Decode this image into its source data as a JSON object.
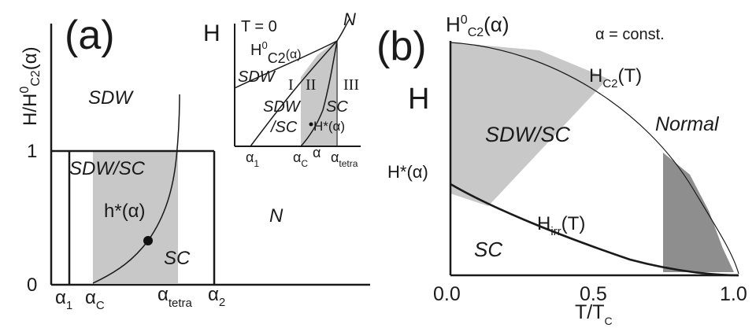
{
  "panel_a": {
    "label": "(a)",
    "ylabel_main": "H/H",
    "ylabel_sup": "0",
    "ylabel_sub": "C2",
    "ylabel_tail": "(α)",
    "tick_1": "1",
    "tick_0": "0",
    "region_sdw": "SDW",
    "region_sdwsc": "SDW/SC",
    "region_n": "N",
    "region_sc": "SC",
    "hstar_label": "h*(α)",
    "x_alpha1": "α",
    "x_alpha1_sub": "1",
    "x_alphac": "α",
    "x_alphac_sub": "C",
    "x_alphatetra": "α",
    "x_alphatetra_sub": "tetra",
    "x_alpha2": "α",
    "x_alpha2_sub": "2",
    "inset": {
      "h_axis": "H",
      "t0": "T = 0",
      "n": "N",
      "hc2": "H",
      "hc2_sup": "0",
      "hc2_sub": "C2",
      "hc2_tail": "(α)",
      "sdw": "SDW",
      "roman1": "I",
      "roman2": "II",
      "roman3": "III",
      "sdw2": "SDW",
      "sc_slash": "/SC",
      "hstar": "H*(α)",
      "sc": "SC",
      "x1": "α",
      "x1_sub": "1",
      "xc": "α",
      "xc_sub": "C",
      "xa": "α",
      "xt": "α",
      "xt_sub": "tetra"
    }
  },
  "panel_b": {
    "label": "(b)",
    "hc20": "H",
    "hc20_sup": "0",
    "hc20_sub": "C2",
    "hc20_tail": "(α)",
    "alpha_const": "α = const.",
    "h_axis": "H",
    "hc2t": "H",
    "hc2t_sub": "C2",
    "hc2t_tail": "(T)",
    "sdwsc": "SDW/SC",
    "normal": "Normal",
    "hstar": "H*(α)",
    "hirr": "H",
    "hirr_sub": "irr",
    "hirr_tail": "(T)",
    "sc": "SC",
    "tick_00": "0.0",
    "tick_05": "0.5",
    "tick_10": "1.0",
    "xlabel": "T/T",
    "xlabel_sub": "C"
  },
  "colors": {
    "light_gray": "#c8c8c8",
    "dark_gray": "#8e8e8e",
    "ink": "#1a1a1a"
  }
}
